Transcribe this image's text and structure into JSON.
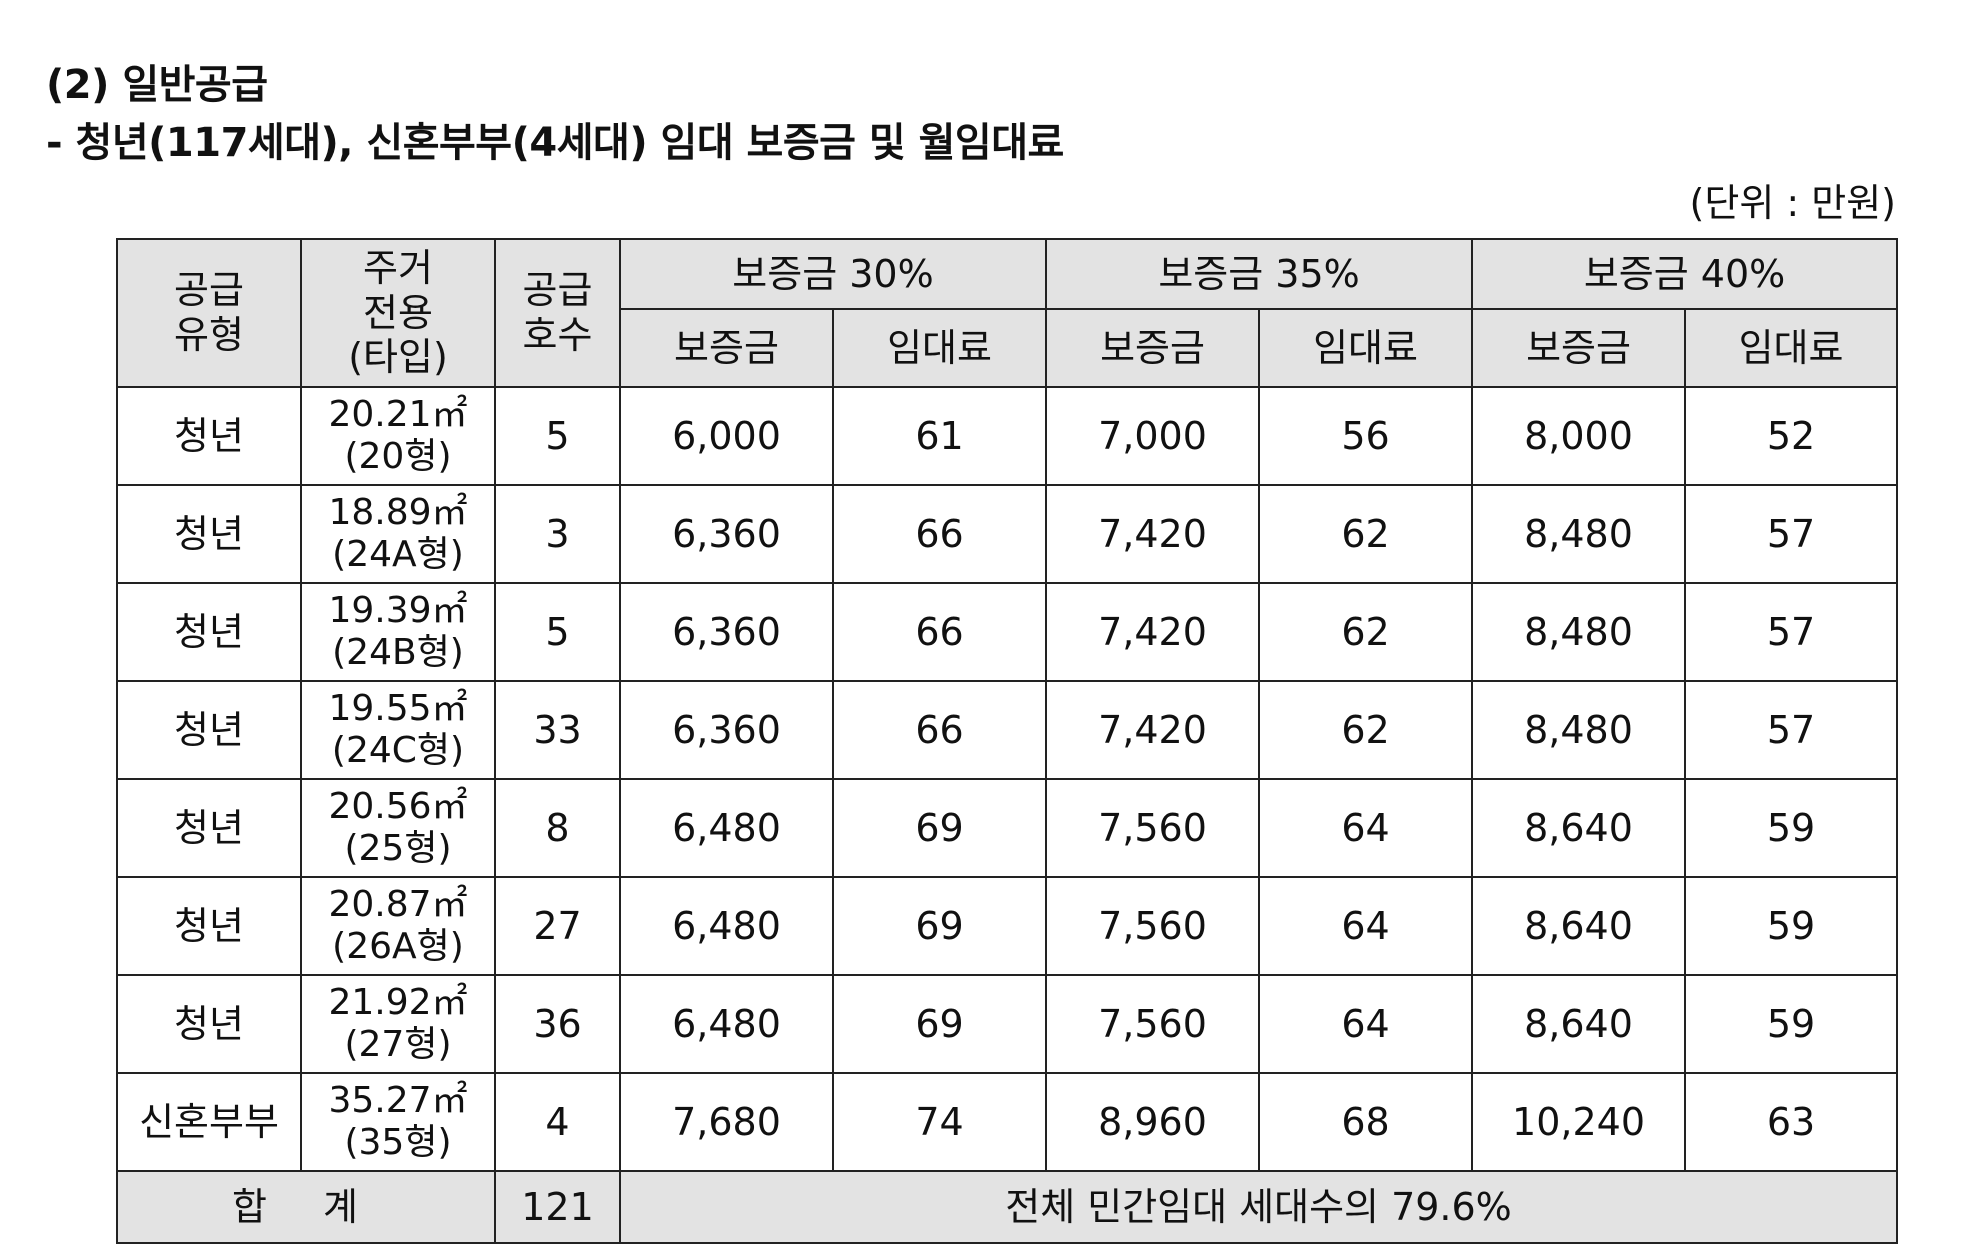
{
  "heading": {
    "section": "(2) 일반공급",
    "subtitle": "- 청년(117세대), 신혼부부(4세대) 임대 보증금 및 월임대료"
  },
  "unit_note": "(단위 : 만원)",
  "table": {
    "headers": {
      "supply_type": "공급\n유형",
      "area": "주거\n전용\n(타입)",
      "units": "공급\n호수",
      "groups": [
        "보증금 30%",
        "보증금 35%",
        "보증금 40%"
      ],
      "deposit": "보증금",
      "rent": "임대료"
    },
    "rows": [
      {
        "type": "청년",
        "area": "20.21㎡",
        "model": "(20형)",
        "units": "5",
        "d30": "6,000",
        "r30": "61",
        "d35": "7,000",
        "r35": "56",
        "d40": "8,000",
        "r40": "52"
      },
      {
        "type": "청년",
        "area": "18.89㎡",
        "model": "(24A형)",
        "units": "3",
        "d30": "6,360",
        "r30": "66",
        "d35": "7,420",
        "r35": "62",
        "d40": "8,480",
        "r40": "57"
      },
      {
        "type": "청년",
        "area": "19.39㎡",
        "model": "(24B형)",
        "units": "5",
        "d30": "6,360",
        "r30": "66",
        "d35": "7,420",
        "r35": "62",
        "d40": "8,480",
        "r40": "57"
      },
      {
        "type": "청년",
        "area": "19.55㎡",
        "model": "(24C형)",
        "units": "33",
        "d30": "6,360",
        "r30": "66",
        "d35": "7,420",
        "r35": "62",
        "d40": "8,480",
        "r40": "57"
      },
      {
        "type": "청년",
        "area": "20.56㎡",
        "model": "(25형)",
        "units": "8",
        "d30": "6,480",
        "r30": "69",
        "d35": "7,560",
        "r35": "64",
        "d40": "8,640",
        "r40": "59"
      },
      {
        "type": "청년",
        "area": "20.87㎡",
        "model": "(26A형)",
        "units": "27",
        "d30": "6,480",
        "r30": "69",
        "d35": "7,560",
        "r35": "64",
        "d40": "8,640",
        "r40": "59"
      },
      {
        "type": "청년",
        "area": "21.92㎡",
        "model": "(27형)",
        "units": "36",
        "d30": "6,480",
        "r30": "69",
        "d35": "7,560",
        "r35": "64",
        "d40": "8,640",
        "r40": "59"
      },
      {
        "type": "신혼부부",
        "area": "35.27㎡",
        "model": "(35형)",
        "units": "4",
        "d30": "7,680",
        "r30": "74",
        "d35": "8,960",
        "r35": "68",
        "d40": "10,240",
        "r40": "63"
      }
    ],
    "total": {
      "label": "합 계",
      "units": "121",
      "note": "전체 민간임대 세대수의 79.6%"
    }
  }
}
